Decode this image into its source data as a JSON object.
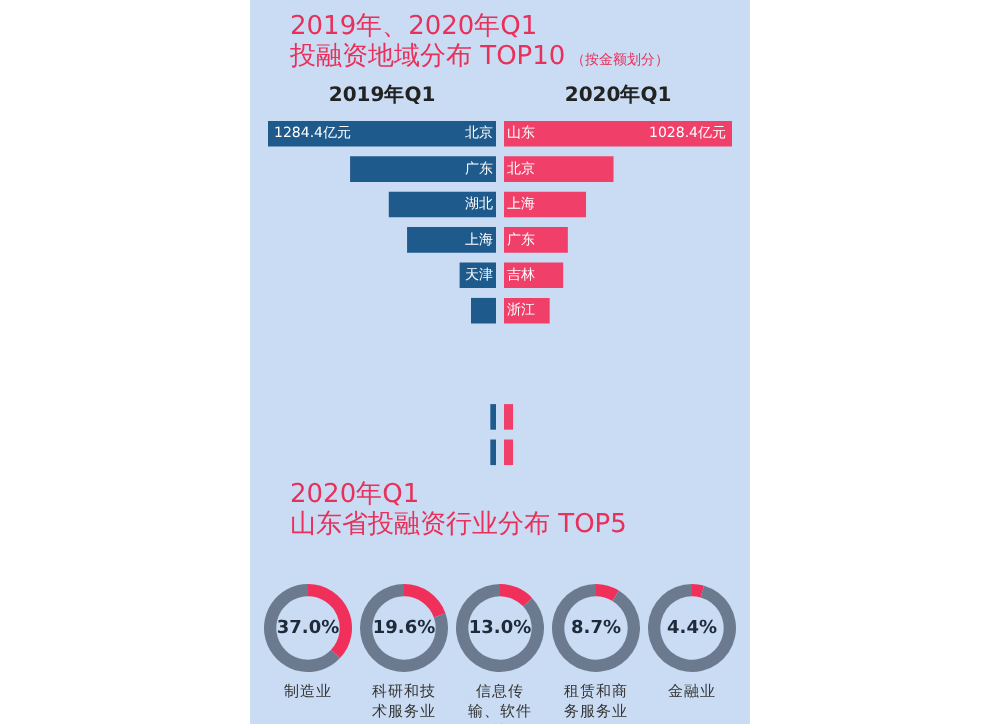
{
  "chart_data": [
    {
      "type": "other",
      "title": "2019年、2020年Q1\n投融资地域分布 TOP10",
      "subtitle": "（按金额划分）"
    },
    {
      "type": "bar",
      "orientation": "horizontal",
      "title": "2019年Q1",
      "categories": [
        "北京",
        "广东",
        "湖北",
        "上海",
        "天津",
        null,
        null,
        null,
        null,
        null
      ],
      "values": [
        1284.4,
        822,
        604,
        501,
        205,
        141,
        null,
        null,
        32,
        32
      ],
      "color": "#1f5a8c",
      "value_labels": [
        "1284.4亿元",
        null,
        null,
        null,
        null,
        null,
        null,
        null,
        null,
        null
      ]
    },
    {
      "type": "bar",
      "orientation": "horizontal",
      "title": "2020年Q1",
      "categories": [
        "山东",
        "北京",
        "上海",
        "广东",
        "吉林",
        "浙江",
        null,
        null,
        null,
        null
      ],
      "values": [
        1028.4,
        494,
        370,
        288,
        267,
        206,
        null,
        null,
        41,
        41
      ],
      "color": "#f0406a",
      "value_labels": [
        "1028.4亿元",
        null,
        null,
        null,
        null,
        null,
        null,
        null,
        null,
        null
      ]
    },
    {
      "type": "other",
      "title": "2020年Q1\n山东省投融资行业分布 TOP5"
    },
    {
      "type": "donut",
      "title": "制造业",
      "categories": [
        null,
        null
      ],
      "values": [
        37.0,
        63.0
      ],
      "colors": [
        "#f0305a",
        "#6b7a8f"
      ],
      "annotations": [
        "37.0%"
      ]
    },
    {
      "type": "donut",
      "title": "科研和技术服务业",
      "categories": [
        null,
        null
      ],
      "values": [
        19.6,
        80.4
      ],
      "colors": [
        "#f0305a",
        "#6b7a8f"
      ],
      "annotations": [
        "19.6%"
      ]
    },
    {
      "type": "donut",
      "title": "信息传输、软件等",
      "categories": [
        null,
        null
      ],
      "values": [
        13.0,
        87.0
      ],
      "colors": [
        "#f0305a",
        "#6b7a8f"
      ],
      "annotations": [
        "13.0%"
      ]
    },
    {
      "type": "donut",
      "title": "租赁和商务服务业",
      "categories": [
        null,
        null
      ],
      "values": [
        8.7,
        91.3
      ],
      "colors": [
        "#f0305a",
        "#6b7a8f"
      ],
      "annotations": [
        "8.7%"
      ]
    },
    {
      "type": "donut",
      "title": "金融业",
      "categories": [
        null,
        null
      ],
      "values": [
        4.4,
        95.6
      ],
      "colors": [
        "#f0305a",
        "#6b7a8f"
      ],
      "annotations": [
        "4.4%"
      ]
    }
  ]
}
